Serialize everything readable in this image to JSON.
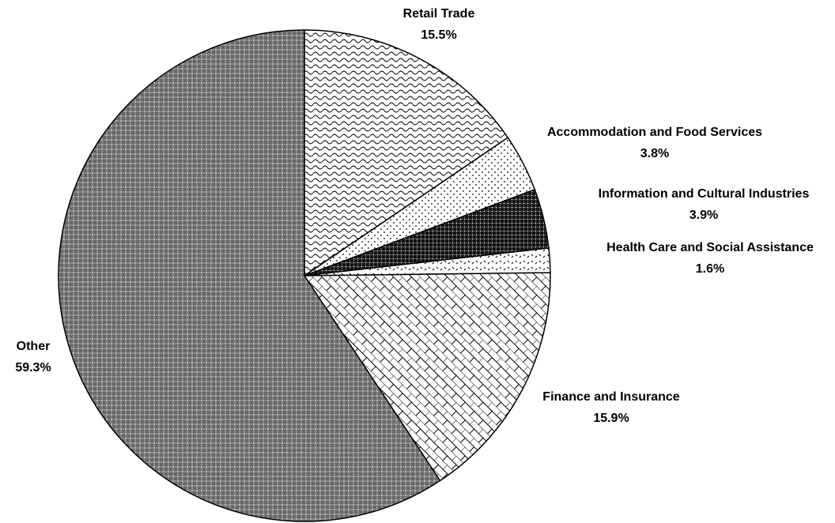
{
  "chart_data": {
    "type": "pie",
    "categories": [
      "Retail Trade",
      "Accommodation and Food Services",
      "Information and Cultural Industries",
      "Health Care and Social Assistance",
      "Finance and Insurance",
      "Other"
    ],
    "values": [
      15.5,
      3.8,
      3.9,
      1.6,
      15.9,
      59.3
    ],
    "value_labels": [
      "15.5%",
      "3.8%",
      "3.9%",
      "1.6%",
      "15.9%",
      "59.3%"
    ]
  }
}
